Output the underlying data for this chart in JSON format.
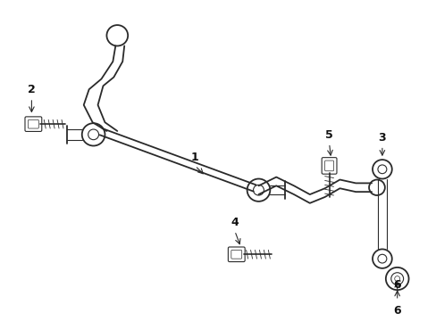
{
  "bg_color": "#ffffff",
  "line_color": "#2a2a2a",
  "label_color": "#111111",
  "lw_main": 1.3,
  "lw_thin": 0.8,
  "lw_thick": 1.8
}
